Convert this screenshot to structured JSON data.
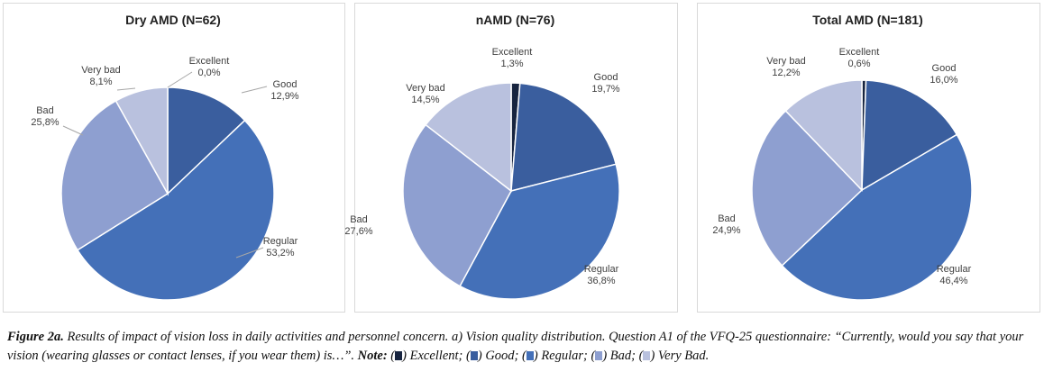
{
  "colors": {
    "Excellent": "#17243f",
    "Good": "#3a5e9e",
    "Regular": "#4470b8",
    "Bad": "#8e9fd0",
    "Very bad": "#b9c1de"
  },
  "chart_data": [
    {
      "type": "pie",
      "title": "Dry AMD (N=62)",
      "labels": [
        "Excellent",
        "Good",
        "Regular",
        "Bad",
        "Very bad"
      ],
      "values": [
        0.0,
        12.9,
        53.2,
        25.8,
        8.1
      ],
      "value_labels": [
        "0,0%",
        "12,9%",
        "53,2%",
        "25,8%",
        "8,1%"
      ]
    },
    {
      "type": "pie",
      "title": "nAMD (N=76)",
      "labels": [
        "Excellent",
        "Good",
        "Regular",
        "Bad",
        "Very bad"
      ],
      "values": [
        1.3,
        19.7,
        36.8,
        27.6,
        14.5
      ],
      "value_labels": [
        "1,3%",
        "19,7%",
        "36,8%",
        "27,6%",
        "14,5%"
      ]
    },
    {
      "type": "pie",
      "title": "Total AMD (N=181)",
      "labels": [
        "Excellent",
        "Good",
        "Regular",
        "Bad",
        "Very bad"
      ],
      "values": [
        0.6,
        16.0,
        46.4,
        24.9,
        12.2
      ],
      "value_labels": [
        "0,6%",
        "16,0%",
        "46,4%",
        "24,9%",
        "12,2%"
      ]
    }
  ],
  "caption": {
    "fig": "Figure 2a.",
    "text": " Results of impact of vision loss in daily activities and personnel concern. a) Vision quality distribution. Question A1 of the VFQ-25 questionnaire: “Currently, would you say that your vision (wearing glasses or contact lenses, if you wear them) is…”. ",
    "note": "Note:",
    "legend": [
      " Excellent; ",
      " Good; ",
      " Regular; ",
      " Bad; ",
      " Very Bad."
    ]
  }
}
